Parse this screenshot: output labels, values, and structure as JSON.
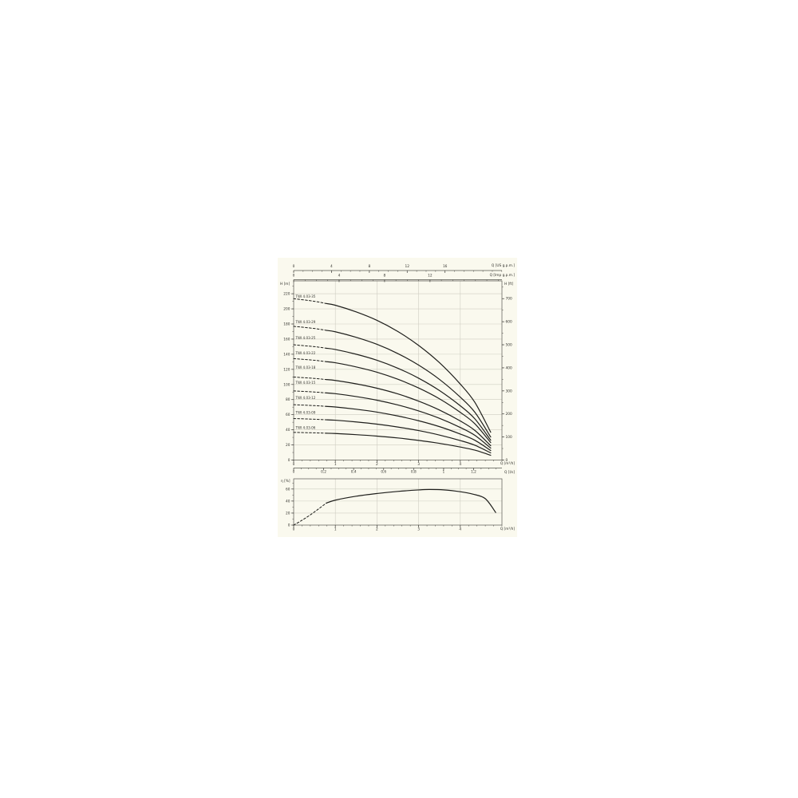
{
  "panel": {
    "background": "#faf9ee",
    "grid_color": "#cfcec2",
    "axis_color": "#55544e",
    "tick_color": "#44433e",
    "curve_color": "#1f1f1c",
    "text_color": "#33332e"
  },
  "labels": {
    "head_m": "H [m]",
    "head_ft": "H [ft]",
    "eta": "η [%]",
    "q_m3h_upper": "Q [m³/h]",
    "q_m3h_lower": "Q [m³/h]",
    "q_ls": "Q [l/s]",
    "q_usgpm": "Q [US g.p.m.]",
    "q_impgpm": "Q [Imp g.p.m.]"
  },
  "chart_data": [
    {
      "type": "line",
      "title": "",
      "xlabel": "Q [m³/h]",
      "ylabel": "H [m]",
      "y2label": "H [ft]",
      "xlim": [
        0,
        5
      ],
      "ylim": [
        0,
        237
      ],
      "y2lim_ft": [
        0,
        777
      ],
      "grid": true,
      "legend_position": "labels-on-curves-left",
      "x_ticks": {
        "majors": [
          0,
          1,
          2,
          3,
          4
        ],
        "minor_step": 0.2,
        "max": 5
      },
      "y_ticks": {
        "majors": [
          0,
          20,
          40,
          60,
          80,
          100,
          120,
          140,
          160,
          180,
          200,
          220
        ],
        "minor_step": 10,
        "max": 230
      },
      "y2_ticks_ft": {
        "majors": [
          0,
          100,
          200,
          300,
          400,
          500,
          600,
          700
        ],
        "minor_step": 50,
        "max": 750
      },
      "aux_x_axes": [
        {
          "id": "us",
          "title": "Q [US g.p.m.]",
          "units_per_m3h": 4.4029,
          "majors": [
            {
              "t": "0",
              "v": 0
            },
            {
              "t": "4",
              "v": 4
            },
            {
              "t": "8",
              "v": 8
            },
            {
              "t": "12",
              "v": 12
            },
            {
              "t": "16",
              "v": 16
            }
          ],
          "minor_step": 1,
          "max": 22
        },
        {
          "id": "imp",
          "title": "Q [Imp g.p.m.]",
          "units_per_m3h": 3.6662,
          "majors": [
            {
              "t": "0",
              "v": 0
            },
            {
              "t": "4",
              "v": 4
            },
            {
              "t": "8",
              "v": 8
            },
            {
              "t": "12",
              "v": 12
            }
          ],
          "minor_step": 1,
          "max": 18
        },
        {
          "id": "ls",
          "title": "Q [l/s]",
          "units_per_m3h": 0.27778,
          "majors": [
            {
              "t": "0",
              "v": 0
            },
            {
              "t": "0,2",
              "v": 0.2
            },
            {
              "t": "0,4",
              "v": 0.4
            },
            {
              "t": "0,6",
              "v": 0.6
            },
            {
              "t": "0,8",
              "v": 0.8
            },
            {
              "t": "1",
              "v": 1.0
            },
            {
              "t": "1,2",
              "v": 1.2
            }
          ],
          "minor_step": 0.05,
          "max": 1.35
        }
      ],
      "q_samples": [
        0,
        0.5,
        1,
        1.5,
        2,
        2.5,
        3,
        3.5,
        4,
        4.35,
        4.73
      ],
      "dash_until_q": 0.78,
      "series": [
        {
          "name": "TWI 4.03-35",
          "stages": 35,
          "label_H": 215,
          "H": [
            213.5,
            210.0,
            204.8,
            196.0,
            184.8,
            170.1,
            151.6,
            128.8,
            100.5,
            76.3,
            36.8
          ]
        },
        {
          "name": "TWI 4.03-29",
          "stages": 29,
          "label_H": 181,
          "H": [
            176.9,
            174.0,
            169.7,
            162.4,
            153.1,
            140.9,
            125.6,
            106.7,
            83.2,
            63.2,
            30.5
          ]
        },
        {
          "name": "TWI 4.03-25",
          "stages": 25,
          "label_H": 160,
          "H": [
            152.5,
            150.0,
            146.3,
            140.0,
            132.0,
            121.5,
            108.3,
            92.0,
            71.8,
            54.5,
            26.3
          ]
        },
        {
          "name": "TWI 4.03-22",
          "stages": 22,
          "label_H": 140,
          "H": [
            134.2,
            132.0,
            128.7,
            123.2,
            116.2,
            106.9,
            95.3,
            81.0,
            63.1,
            48.0,
            23.1
          ]
        },
        {
          "name": "TWI 4.03-18",
          "stages": 18,
          "label_H": 121,
          "H": [
            109.8,
            108.0,
            105.3,
            100.8,
            95.0,
            87.5,
            77.9,
            66.2,
            51.7,
            39.2,
            18.9
          ]
        },
        {
          "name": "TWI 4.03-15",
          "stages": 15,
          "label_H": 101,
          "H": [
            91.5,
            90.0,
            87.8,
            84.0,
            79.2,
            72.9,
            65.0,
            55.2,
            43.1,
            32.7,
            15.8
          ]
        },
        {
          "name": "TWI 4.03-12",
          "stages": 12,
          "label_H": 81,
          "H": [
            73.2,
            72.0,
            70.2,
            67.2,
            63.4,
            58.3,
            52.0,
            44.2,
            34.4,
            26.2,
            12.6
          ]
        },
        {
          "name": "TWI 4.03-09",
          "stages": 9,
          "label_H": 61,
          "H": [
            54.9,
            54.0,
            52.7,
            50.4,
            47.5,
            43.7,
            39.0,
            33.1,
            25.8,
            19.6,
            9.5
          ]
        },
        {
          "name": "TWI 4.03-06",
          "stages": 6,
          "label_H": 41,
          "H": [
            36.6,
            36.0,
            35.1,
            33.6,
            31.7,
            29.2,
            26.0,
            22.1,
            17.2,
            13.1,
            6.3
          ]
        }
      ]
    },
    {
      "type": "line",
      "title": "",
      "xlabel": "Q [m³/h]",
      "ylabel": "η [%]",
      "xlim": [
        0,
        5
      ],
      "ylim": [
        0,
        77
      ],
      "grid": true,
      "x_ticks": {
        "majors": [
          0,
          1,
          2,
          3,
          4
        ],
        "minor_step": 0.2,
        "max": 5
      },
      "y_ticks": {
        "majors": [
          0,
          20,
          40,
          60
        ],
        "minor_step": 10,
        "max": 70
      },
      "series": [
        {
          "name": "η",
          "dashed": [
            [
              0,
              0
            ],
            [
              0.2,
              8
            ],
            [
              0.4,
              17
            ],
            [
              0.6,
              27
            ],
            [
              0.78,
              36.5
            ]
          ],
          "solid": [
            [
              0.78,
              36.5
            ],
            [
              1,
              41.5
            ],
            [
              1.5,
              48
            ],
            [
              2,
              52.5
            ],
            [
              2.5,
              56
            ],
            [
              3,
              58.5
            ],
            [
              3.25,
              59.2
            ],
            [
              3.6,
              58.6
            ],
            [
              4,
              55.5
            ],
            [
              4.3,
              51.5
            ],
            [
              4.6,
              44
            ],
            [
              4.85,
              21
            ]
          ]
        }
      ]
    }
  ]
}
